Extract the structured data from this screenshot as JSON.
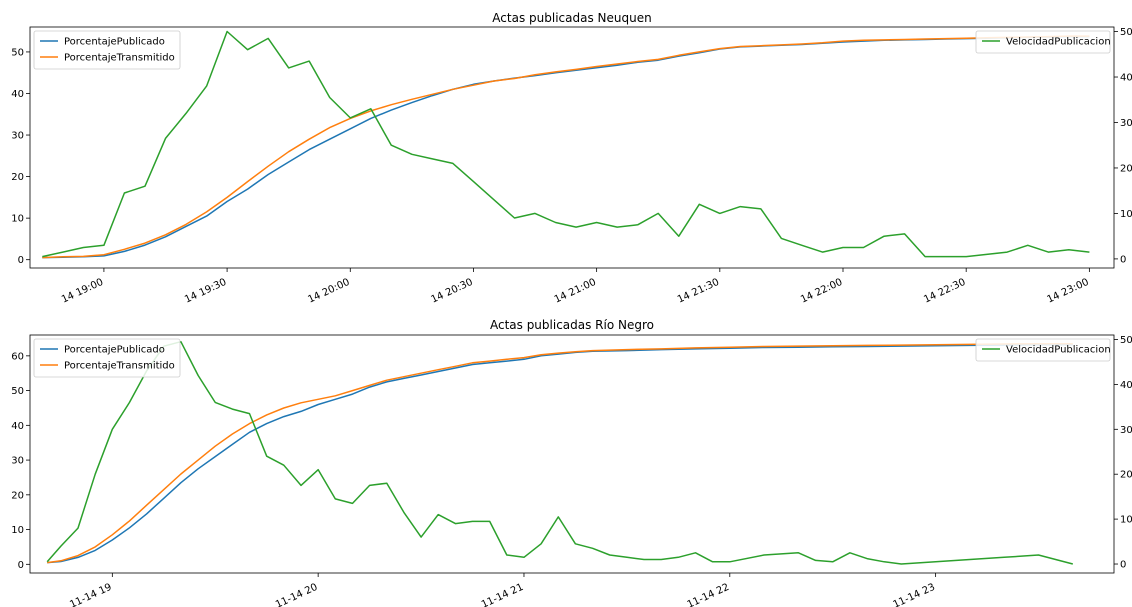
{
  "colors": {
    "publicado": "#1f77b4",
    "transmitido": "#ff7f0e",
    "velocidad": "#2ca02c",
    "axis": "#000000",
    "legend_border": "#cccccc"
  },
  "chart_data": [
    {
      "type": "line",
      "title": "Actas publicadas Neuquen",
      "xlabel": "",
      "ylabel": "",
      "x_tick_labels": [
        "14 19:00",
        "14 19:30",
        "14 20:00",
        "14 20:30",
        "14 21:00",
        "14 21:30",
        "14 22:00",
        "14 22:30",
        "14 23:00"
      ],
      "x_tick_minutes": [
        0,
        30,
        60,
        90,
        120,
        150,
        180,
        210,
        240
      ],
      "xlim": [
        -18,
        246
      ],
      "ylim_left": [
        -2,
        56
      ],
      "yticks_left": [
        0,
        10,
        20,
        30,
        40,
        50
      ],
      "ylim_right": [
        -2,
        51
      ],
      "yticks_right": [
        0,
        10,
        20,
        30,
        40,
        50
      ],
      "grid": false,
      "legend_left": "top-left",
      "legend_right": "top-right",
      "series": [
        {
          "name": "PorcentajePublicado",
          "axis": "left",
          "color_key": "publicado",
          "x": [
            -15,
            -10,
            -5,
            0,
            5,
            10,
            15,
            20,
            25,
            30,
            35,
            40,
            45,
            50,
            55,
            60,
            65,
            70,
            75,
            80,
            85,
            90,
            95,
            100,
            105,
            110,
            115,
            120,
            125,
            130,
            135,
            140,
            145,
            150,
            155,
            160,
            165,
            170,
            175,
            180,
            185,
            190,
            195,
            200,
            205,
            210,
            215,
            220,
            225,
            230,
            235,
            240
          ],
          "values": [
            0.5,
            0.6,
            0.7,
            0.9,
            2,
            3.5,
            5.5,
            8,
            10.5,
            14,
            17,
            20.5,
            23.5,
            26.5,
            29,
            31.5,
            34,
            36,
            37.8,
            39.5,
            41,
            42.2,
            43,
            43.7,
            44.3,
            45,
            45.6,
            46.2,
            46.8,
            47.5,
            48,
            49,
            49.8,
            50.7,
            51.2,
            51.4,
            51.6,
            51.8,
            52.1,
            52.4,
            52.6,
            52.8,
            52.9,
            53,
            53.1,
            53.2,
            53.3,
            53.4,
            53.5,
            53.6,
            53.7,
            53.7
          ]
        },
        {
          "name": "PorcentajeTransmitido",
          "axis": "left",
          "color_key": "transmitido",
          "x": [
            -15,
            -10,
            -5,
            0,
            5,
            10,
            15,
            20,
            25,
            30,
            35,
            40,
            45,
            50,
            55,
            60,
            65,
            70,
            75,
            80,
            85,
            90,
            95,
            100,
            105,
            110,
            115,
            120,
            125,
            130,
            135,
            140,
            145,
            150,
            155,
            160,
            165,
            170,
            175,
            180,
            185,
            190,
            195,
            200,
            205,
            210,
            215,
            220,
            225,
            230,
            235,
            240
          ],
          "values": [
            0.5,
            0.7,
            0.8,
            1.2,
            2.5,
            4,
            6,
            8.5,
            11.5,
            15,
            18.8,
            22.5,
            26,
            29,
            31.8,
            34,
            35.8,
            37.3,
            38.6,
            39.8,
            41,
            42,
            43,
            43.6,
            44.5,
            45.2,
            45.8,
            46.5,
            47.1,
            47.7,
            48.2,
            49.2,
            50,
            50.8,
            51.3,
            51.5,
            51.7,
            51.9,
            52.2,
            52.6,
            52.8,
            52.9,
            53,
            53.1,
            53.2,
            53.3,
            53.4,
            53.5,
            53.6,
            53.7,
            53.8,
            53.8
          ]
        },
        {
          "name": "VelocidadPublicacion",
          "axis": "right",
          "color_key": "velocidad",
          "x": [
            -15,
            -10,
            -5,
            0,
            5,
            10,
            15,
            20,
            25,
            30,
            35,
            40,
            45,
            50,
            55,
            60,
            65,
            70,
            75,
            80,
            85,
            90,
            95,
            100,
            105,
            110,
            115,
            120,
            125,
            130,
            135,
            140,
            145,
            150,
            155,
            160,
            165,
            170,
            175,
            180,
            185,
            190,
            195,
            200,
            205,
            210,
            215,
            220,
            225,
            230,
            235,
            240
          ],
          "values": [
            0.5,
            1.5,
            2.5,
            3,
            14.5,
            16,
            26.5,
            32,
            38,
            50,
            46,
            48.5,
            42,
            43.5,
            35.5,
            31,
            33,
            25,
            23,
            22,
            21,
            17,
            13,
            9,
            10,
            8,
            7,
            8,
            7,
            7.5,
            10,
            5,
            12,
            10,
            11.5,
            11,
            4.5,
            3,
            1.5,
            2.5,
            2.5,
            5,
            5.5,
            0.5,
            0.5,
            0.5,
            1,
            1.5,
            3,
            1.5,
            2,
            1.5
          ]
        }
      ]
    },
    {
      "type": "line",
      "title": "Actas publicadas Río Negro",
      "xlabel": "",
      "ylabel": "",
      "x_tick_labels": [
        "11-14 19",
        "11-14 20",
        "11-14 21",
        "11-14 22",
        "11-14 23"
      ],
      "x_tick_minutes": [
        0,
        60,
        120,
        180,
        240
      ],
      "xlim": [
        -24,
        292
      ],
      "ylim_left": [
        -2.5,
        66
      ],
      "yticks_left": [
        0,
        10,
        20,
        30,
        40,
        50,
        60
      ],
      "ylim_right": [
        -2,
        51
      ],
      "yticks_right": [
        0,
        10,
        20,
        30,
        40,
        50
      ],
      "grid": false,
      "legend_left": "top-left",
      "legend_right": "top-right",
      "series": [
        {
          "name": "PorcentajePublicado",
          "axis": "left",
          "color_key": "publicado",
          "x": [
            -19,
            -15,
            -10,
            -5,
            0,
            5,
            10,
            15,
            20,
            25,
            30,
            35,
            40,
            45,
            50,
            55,
            60,
            65,
            70,
            75,
            80,
            85,
            90,
            95,
            100,
            105,
            110,
            115,
            120,
            125,
            130,
            135,
            140,
            150,
            160,
            170,
            180,
            190,
            200,
            210,
            220,
            230,
            240,
            250,
            260,
            270,
            280
          ],
          "values": [
            0.5,
            0.8,
            2,
            4,
            7,
            10.5,
            14.5,
            19,
            23.5,
            27.5,
            31,
            34.5,
            38,
            40.5,
            42.5,
            44,
            46,
            47.5,
            49,
            51,
            52.5,
            53.5,
            54.5,
            55.5,
            56.5,
            57.5,
            58,
            58.5,
            59,
            60,
            60.5,
            61,
            61.3,
            61.5,
            61.8,
            62,
            62.2,
            62.4,
            62.5,
            62.6,
            62.7,
            62.8,
            62.9,
            63,
            63.1,
            63.2,
            63.2
          ]
        },
        {
          "name": "PorcentajeTransmitido",
          "axis": "left",
          "color_key": "transmitido",
          "x": [
            -19,
            -15,
            -10,
            -5,
            0,
            5,
            10,
            15,
            20,
            25,
            30,
            35,
            40,
            45,
            50,
            55,
            60,
            65,
            70,
            75,
            80,
            85,
            90,
            95,
            100,
            105,
            110,
            115,
            120,
            125,
            130,
            135,
            140,
            150,
            160,
            170,
            180,
            190,
            200,
            210,
            220,
            230,
            240,
            250,
            260,
            270,
            280
          ],
          "values": [
            0.5,
            1,
            2.5,
            5,
            8.5,
            12.5,
            17,
            21.5,
            26,
            30,
            34,
            37.5,
            40.5,
            43,
            45,
            46.5,
            47.5,
            48.5,
            50,
            51.5,
            53,
            54,
            55,
            56,
            57,
            58,
            58.5,
            59,
            59.5,
            60.3,
            60.8,
            61.2,
            61.5,
            61.8,
            62,
            62.3,
            62.5,
            62.7,
            62.8,
            62.9,
            63,
            63.1,
            63.2,
            63.3,
            63.4,
            63.5,
            63.5
          ]
        },
        {
          "name": "VelocidadPublicacion",
          "axis": "right",
          "color_key": "velocidad",
          "x": [
            -19,
            -15,
            -10,
            -5,
            0,
            5,
            10,
            15,
            20,
            25,
            30,
            35,
            40,
            45,
            50,
            55,
            60,
            65,
            70,
            75,
            80,
            85,
            90,
            95,
            100,
            105,
            110,
            115,
            120,
            125,
            130,
            135,
            140,
            145,
            150,
            155,
            160,
            165,
            170,
            175,
            180,
            190,
            200,
            205,
            210,
            215,
            220,
            225,
            230,
            240,
            250,
            260,
            270,
            280
          ],
          "values": [
            0.5,
            4,
            8,
            20,
            30,
            36,
            43,
            48.5,
            49.5,
            42,
            36,
            34.5,
            33.5,
            24,
            22,
            17.5,
            21,
            14.5,
            13.5,
            17.5,
            18,
            11.5,
            6,
            11,
            9,
            9.5,
            9.5,
            2,
            1.5,
            4.5,
            10.5,
            4.5,
            3.5,
            2,
            1.5,
            1,
            1,
            1.5,
            2.5,
            0.5,
            0.5,
            2,
            2.5,
            0.8,
            0.5,
            2.5,
            1.2,
            0.5,
            0,
            0.5,
            1,
            1.5,
            2,
            0
          ]
        }
      ]
    }
  ]
}
